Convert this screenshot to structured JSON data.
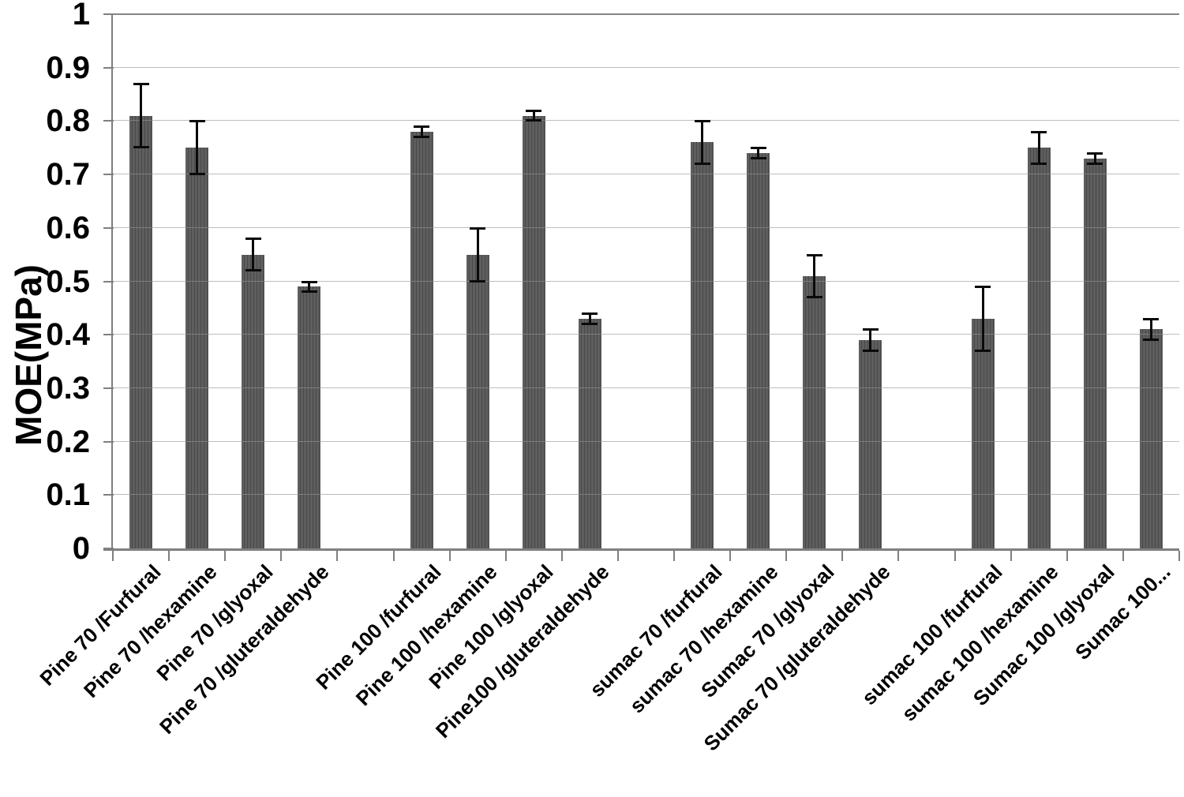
{
  "chart_data": {
    "type": "bar",
    "xlabel": "",
    "ylabel": "MOE(MPa)",
    "ylim": [
      0,
      1
    ],
    "ytick_step": 0.1,
    "ytick_labels": [
      "0",
      "0.1",
      "0.2",
      "0.3",
      "0.4",
      "0.5",
      "0.6",
      "0.7",
      "0.8",
      "0.9",
      "1"
    ],
    "grid": "horizontal",
    "legend": false,
    "bar_color": "#565656",
    "bar_pattern": "vertical-stripes",
    "error_bar_color": "#0a0a0a",
    "categories": [
      "Pine 70 /Furfural",
      "Pine 70 /hexamine",
      "Pine 70 /glyoxal",
      "Pine 70 /gluteraldehyde",
      "Pine 100 /furfural",
      "Pine 100 /hexamine",
      "Pine 100 /glyoxal",
      "Pine100 /gluteraldehyde",
      "sumac 70 /furfural",
      "sumac 70 /hexamine",
      "Sumac 70 /glyoxal",
      "Sumac 70 /gluteraldehyde",
      "sumac 100 /furfural",
      "sumac 100 /hexamine",
      "Sumac 100 /glyoxal",
      "Sumac 100..."
    ],
    "values": [
      0.81,
      0.75,
      0.55,
      0.49,
      0.78,
      0.55,
      0.81,
      0.43,
      0.76,
      0.74,
      0.51,
      0.39,
      0.43,
      0.75,
      0.73,
      0.41
    ],
    "errors": [
      0.06,
      0.05,
      0.03,
      0.01,
      0.01,
      0.05,
      0.01,
      0.01,
      0.04,
      0.01,
      0.04,
      0.02,
      0.06,
      0.03,
      0.01,
      0.02
    ],
    "layout": {
      "group_size": 4,
      "gap_slots_between_groups": 1
    }
  }
}
